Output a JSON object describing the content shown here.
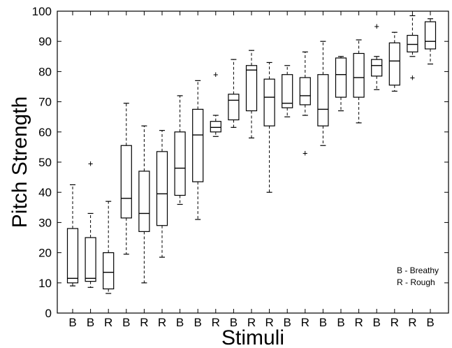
{
  "chart_data": {
    "type": "box",
    "xlabel": "Stimuli",
    "ylabel": "Pitch Strength",
    "ylim": [
      0,
      100
    ],
    "yticks": [
      0,
      10,
      20,
      30,
      40,
      50,
      60,
      70,
      80,
      90,
      100
    ],
    "categories": [
      "B",
      "B",
      "R",
      "B",
      "R",
      "R",
      "B",
      "B",
      "R",
      "B",
      "R",
      "R",
      "B",
      "R",
      "B",
      "B",
      "R",
      "B",
      "R",
      "R",
      "B"
    ],
    "boxes": [
      {
        "min": 9,
        "q1": 10,
        "median": 11.5,
        "q3": 28,
        "max": 42.5,
        "outliers": []
      },
      {
        "min": 8.5,
        "q1": 10.5,
        "median": 11.5,
        "q3": 25,
        "max": 33,
        "outliers": [
          49.5
        ]
      },
      {
        "min": 6.5,
        "q1": 8,
        "median": 13.5,
        "q3": 20,
        "max": 37,
        "outliers": []
      },
      {
        "min": 19.5,
        "q1": 31.5,
        "median": 38,
        "q3": 55.5,
        "max": 69.5,
        "outliers": []
      },
      {
        "min": 10,
        "q1": 27,
        "median": 33,
        "q3": 47,
        "max": 62,
        "outliers": []
      },
      {
        "min": 18.5,
        "q1": 29,
        "median": 39.5,
        "q3": 53.5,
        "max": 60.5,
        "outliers": []
      },
      {
        "min": 36,
        "q1": 39,
        "median": 48,
        "q3": 60,
        "max": 72,
        "outliers": []
      },
      {
        "min": 31,
        "q1": 43.5,
        "median": 59,
        "q3": 67.5,
        "max": 77,
        "outliers": []
      },
      {
        "min": 58.5,
        "q1": 60,
        "median": 61.5,
        "q3": 63.5,
        "max": 65.5,
        "outliers": [
          79
        ]
      },
      {
        "min": 61.5,
        "q1": 64,
        "median": 70.5,
        "q3": 72.5,
        "max": 84,
        "outliers": []
      },
      {
        "min": 58,
        "q1": 67,
        "median": 80.5,
        "q3": 82,
        "max": 87,
        "outliers": []
      },
      {
        "min": 40,
        "q1": 62,
        "median": 71.5,
        "q3": 77.5,
        "max": 83,
        "outliers": []
      },
      {
        "min": 65,
        "q1": 68,
        "median": 69.5,
        "q3": 79,
        "max": 82,
        "outliers": []
      },
      {
        "min": 65.5,
        "q1": 69,
        "median": 72,
        "q3": 78,
        "max": 86.5,
        "outliers": [
          53
        ]
      },
      {
        "min": 55.5,
        "q1": 62,
        "median": 67.5,
        "q3": 79,
        "max": 90,
        "outliers": []
      },
      {
        "min": 67,
        "q1": 71.5,
        "median": 79,
        "q3": 84.5,
        "max": 85,
        "outliers": []
      },
      {
        "min": 63,
        "q1": 71.5,
        "median": 78,
        "q3": 86,
        "max": 90.5,
        "outliers": []
      },
      {
        "min": 74,
        "q1": 78.5,
        "median": 82,
        "q3": 84,
        "max": 85,
        "outliers": [
          95
        ]
      },
      {
        "min": 73.5,
        "q1": 75.5,
        "median": 83.5,
        "q3": 89.5,
        "max": 93,
        "outliers": []
      },
      {
        "min": 85,
        "q1": 86.5,
        "median": 89,
        "q3": 92,
        "max": 98.5,
        "outliers": [
          78
        ]
      },
      {
        "min": 82.5,
        "q1": 87.5,
        "median": 90,
        "q3": 96.5,
        "max": 97.5,
        "outliers": []
      }
    ],
    "legend": [
      "B - Breathy",
      "R - Rough"
    ],
    "legend_position": "bottom-right"
  }
}
